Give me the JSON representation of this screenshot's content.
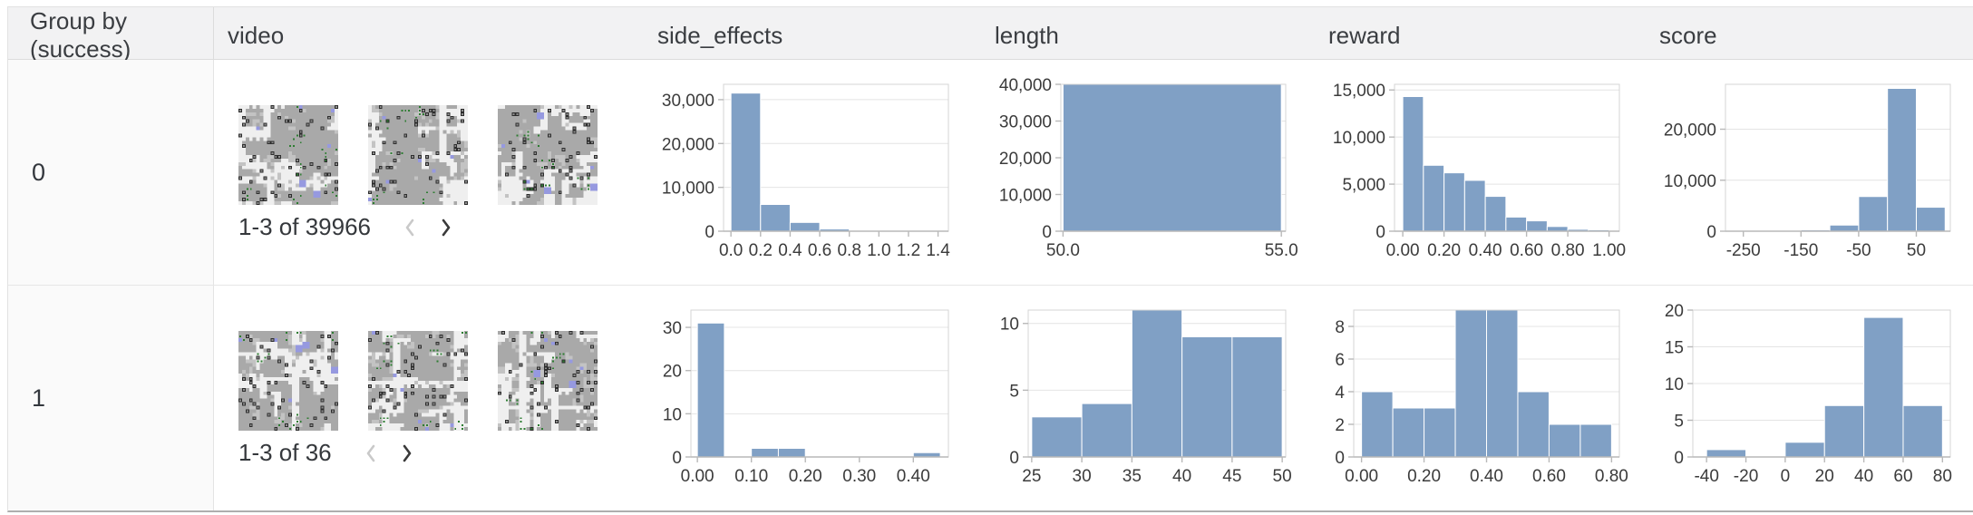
{
  "header": {
    "columns": [
      "Group by (success)",
      "video",
      "side_effects",
      "length",
      "reward",
      "score"
    ]
  },
  "rows": [
    {
      "group": "0",
      "video": {
        "pagination": "1-3 of 39966",
        "prev_enabled": false,
        "next_enabled": true,
        "thumbnail_count": 3
      }
    },
    {
      "group": "1",
      "video": {
        "pagination": "1-3 of 36",
        "prev_enabled": false,
        "next_enabled": true,
        "thumbnail_count": 3
      }
    }
  ],
  "chart_data": [
    {
      "type": "bar",
      "row_group": "0",
      "column": "side_effects",
      "bins": [
        [
          0.0,
          0.2,
          31500
        ],
        [
          0.2,
          0.4,
          6100
        ],
        [
          0.4,
          0.6,
          2000
        ],
        [
          0.6,
          0.8,
          500
        ],
        [
          0.8,
          1.0,
          150
        ],
        [
          1.0,
          1.2,
          80
        ],
        [
          1.2,
          1.4,
          60
        ]
      ],
      "xlim": [
        -0.05,
        1.47
      ],
      "ylim": [
        0,
        33500
      ],
      "xticks": [
        0.0,
        0.2,
        0.4,
        0.6,
        0.8,
        1.0,
        1.2,
        1.4
      ],
      "xtick_labels": [
        "0.0",
        "0.2",
        "0.4",
        "0.6",
        "0.8",
        "1.0",
        "1.2",
        "1.4"
      ],
      "yticks": [
        0,
        10000,
        20000,
        30000
      ],
      "ytick_labels": [
        "0",
        "10,000",
        "20,000",
        "30,000"
      ],
      "grid": true,
      "legend": "none"
    },
    {
      "type": "bar",
      "row_group": "0",
      "column": "length",
      "bins": [
        [
          50.0,
          55.0,
          40000
        ]
      ],
      "xlim": [
        49.95,
        55.1
      ],
      "ylim": [
        0,
        40000
      ],
      "xticks": [
        50.0,
        55.0
      ],
      "xtick_labels": [
        "50.0",
        "55.0"
      ],
      "yticks": [
        0,
        10000,
        20000,
        30000,
        40000
      ],
      "ytick_labels": [
        "0",
        "10,000",
        "20,000",
        "30,000",
        "40,000"
      ],
      "grid": true,
      "legend": "none"
    },
    {
      "type": "bar",
      "row_group": "0",
      "column": "reward",
      "bins": [
        [
          0.0,
          0.1,
          14300
        ],
        [
          0.1,
          0.2,
          7000
        ],
        [
          0.2,
          0.3,
          6200
        ],
        [
          0.3,
          0.4,
          5400
        ],
        [
          0.4,
          0.5,
          3700
        ],
        [
          0.5,
          0.6,
          1500
        ],
        [
          0.6,
          0.7,
          1100
        ],
        [
          0.7,
          0.8,
          500
        ],
        [
          0.8,
          0.9,
          200
        ],
        [
          0.9,
          1.0,
          150
        ]
      ],
      "xlim": [
        -0.04,
        1.05
      ],
      "ylim": [
        0,
        15600
      ],
      "xticks": [
        0.0,
        0.2,
        0.4,
        0.6,
        0.8,
        1.0
      ],
      "xtick_labels": [
        "0.00",
        "0.20",
        "0.40",
        "0.60",
        "0.80",
        "1.00"
      ],
      "yticks": [
        0,
        5000,
        10000,
        15000
      ],
      "ytick_labels": [
        "0",
        "5,000",
        "10,000",
        "15,000"
      ],
      "grid": true,
      "legend": "none"
    },
    {
      "type": "bar",
      "row_group": "0",
      "column": "score",
      "bins": [
        [
          -250,
          -200,
          120
        ],
        [
          -200,
          -150,
          120
        ],
        [
          -150,
          -100,
          260
        ],
        [
          -100,
          -50,
          1200
        ],
        [
          -50,
          0,
          6800
        ],
        [
          0,
          50,
          28000
        ],
        [
          50,
          100,
          4700
        ]
      ],
      "xlim": [
        -281,
        109
      ],
      "ylim": [
        0,
        28800
      ],
      "xticks": [
        -250,
        -150,
        -50,
        50
      ],
      "xtick_labels": [
        "-250",
        "-150",
        "-50",
        "50"
      ],
      "yticks": [
        0,
        10000,
        20000
      ],
      "ytick_labels": [
        "0",
        "10,000",
        "20,000"
      ],
      "grid": true,
      "legend": "none"
    },
    {
      "type": "bar",
      "row_group": "1",
      "column": "side_effects",
      "bins": [
        [
          0.0,
          0.05,
          31
        ],
        [
          0.1,
          0.15,
          2
        ],
        [
          0.15,
          0.2,
          2
        ],
        [
          0.4,
          0.45,
          1
        ]
      ],
      "xlim": [
        -0.012,
        0.465
      ],
      "ylim": [
        0,
        34
      ],
      "xticks": [
        0.0,
        0.1,
        0.2,
        0.3,
        0.4
      ],
      "xtick_labels": [
        "0.00",
        "0.10",
        "0.20",
        "0.30",
        "0.40"
      ],
      "yticks": [
        0,
        10,
        20,
        30
      ],
      "ytick_labels": [
        "0",
        "10",
        "20",
        "30"
      ],
      "grid": true,
      "legend": "none"
    },
    {
      "type": "bar",
      "row_group": "1",
      "column": "length",
      "bins": [
        [
          25,
          30,
          3
        ],
        [
          30,
          35,
          4
        ],
        [
          35,
          40,
          11
        ],
        [
          40,
          45,
          9
        ],
        [
          45,
          50,
          9
        ]
      ],
      "xlim": [
        24.65,
        50.35
      ],
      "ylim": [
        0,
        11
      ],
      "xticks": [
        25,
        30,
        35,
        40,
        45,
        50
      ],
      "xtick_labels": [
        "25",
        "30",
        "35",
        "40",
        "45",
        "50"
      ],
      "yticks": [
        0,
        5,
        10
      ],
      "ytick_labels": [
        "0",
        "5",
        "10"
      ],
      "grid": true,
      "legend": "none"
    },
    {
      "type": "bar",
      "row_group": "1",
      "column": "reward",
      "bins": [
        [
          0.0,
          0.1,
          4
        ],
        [
          0.1,
          0.2,
          3
        ],
        [
          0.2,
          0.3,
          3
        ],
        [
          0.3,
          0.4,
          9
        ],
        [
          0.4,
          0.5,
          9
        ],
        [
          0.5,
          0.6,
          4
        ],
        [
          0.6,
          0.7,
          2
        ],
        [
          0.7,
          0.8,
          2
        ]
      ],
      "xlim": [
        -0.025,
        0.825
      ],
      "ylim": [
        0,
        9
      ],
      "xticks": [
        0.0,
        0.2,
        0.4,
        0.6,
        0.8
      ],
      "xtick_labels": [
        "0.00",
        "0.20",
        "0.40",
        "0.60",
        "0.80"
      ],
      "yticks": [
        0,
        2,
        4,
        6,
        8
      ],
      "ytick_labels": [
        "0",
        "2",
        "4",
        "6",
        "8"
      ],
      "grid": true,
      "legend": "none"
    },
    {
      "type": "bar",
      "row_group": "1",
      "column": "score",
      "bins": [
        [
          -40,
          -20,
          1
        ],
        [
          0,
          20,
          2
        ],
        [
          20,
          40,
          7
        ],
        [
          40,
          60,
          19
        ],
        [
          60,
          80,
          7
        ]
      ],
      "xlim": [
        -47,
        84
      ],
      "ylim": [
        0,
        20
      ],
      "xticks": [
        -40,
        -20,
        0,
        20,
        40,
        60,
        80
      ],
      "xtick_labels": [
        "-40",
        "-20",
        "0",
        "20",
        "40",
        "60",
        "80"
      ],
      "yticks": [
        0,
        5,
        10,
        15,
        20
      ],
      "ytick_labels": [
        "0",
        "5",
        "10",
        "15",
        "20"
      ],
      "grid": true,
      "legend": "none"
    }
  ],
  "colors": {
    "bar": "#80a0c5",
    "header_bg": "#f2f2f3",
    "group_cell_bg": "#fafafa",
    "gridline": "#e4e4e4",
    "axis": "#b9b9b9",
    "tick_label": "#3b3b3b",
    "chevron_disabled": "#c9c9c9",
    "chevron_enabled": "#3a3a3a",
    "thumb_palette": {
      "base": "#a9a9a9",
      "light_patch": "#c3c3c3",
      "path": "#efefef",
      "marker_dark": "#2d2d2d",
      "marker_pip": "#8f8f8f",
      "blue": "#9699e0",
      "green": "#2e7d32",
      "yellow": "#d2d245"
    }
  }
}
